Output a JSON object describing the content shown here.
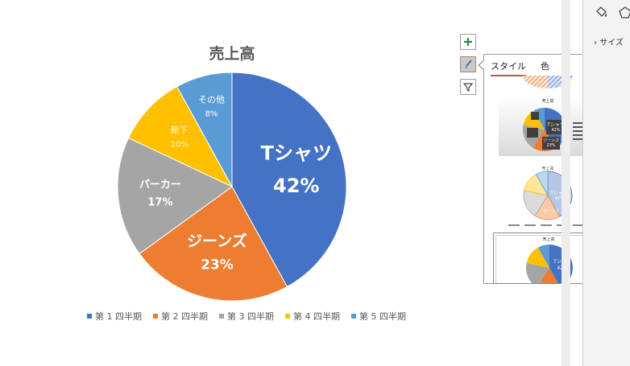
{
  "chart": {
    "title": "売上高",
    "colors": [
      "#4472c4",
      "#ed7d31",
      "#a5a5a5",
      "#ffc000",
      "#5b9bd5"
    ]
  },
  "chart_data": {
    "type": "pie",
    "title": "売上高",
    "categories": [
      "Tシャツ",
      "ジーンズ",
      "パーカー",
      "靴下",
      "その他"
    ],
    "values": [
      42,
      23,
      17,
      10,
      8
    ],
    "data_labels": [
      "42%",
      "23%",
      "17%",
      "10%",
      "8%"
    ],
    "legend_entries": [
      "第 1 四半期",
      "第 2 四半期",
      "第 3 四半期",
      "第 4 四半期",
      "第 5 四半期"
    ],
    "legend_placement": "bottom"
  },
  "side_buttons": {
    "elements_icon": "plus-icon",
    "styles_icon": "brush-icon",
    "filter_icon": "funnel-icon"
  },
  "style_panel": {
    "tabs": [
      "スタイル",
      "色"
    ],
    "active_tab": "スタイル",
    "thumb_title": "売上高",
    "thumb_main_label": "Tシャツ",
    "thumb_main_value": "42%",
    "thumb_second_label": "ジーンズ",
    "thumb_second_value": "23%"
  },
  "right_pane": {
    "size_label": "サイズ",
    "fill_icon": "paint-bucket-icon",
    "shape_icon": "pentagon-icon"
  }
}
